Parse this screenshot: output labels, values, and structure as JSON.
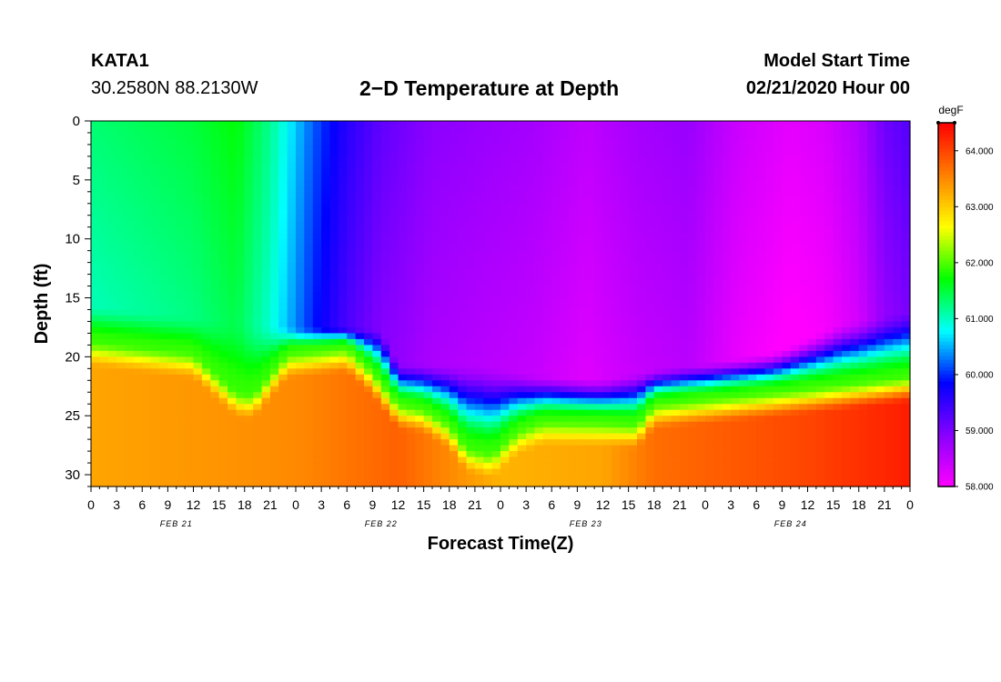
{
  "header": {
    "station": "KATA1",
    "coords": "30.2580N 88.2130W",
    "title": "2−D Temperature at Depth",
    "model_start_label": "Model Start Time",
    "model_start_value": "02/21/2020 Hour 00"
  },
  "chart_data": {
    "type": "heatmap",
    "title": "2−D Temperature at Depth",
    "xlabel": "Forecast Time(Z)",
    "ylabel": "Depth (ft)",
    "x_range_hours": [
      0,
      96
    ],
    "y_range_ft": [
      0,
      31
    ],
    "x_tick_labels": [
      "0",
      "3",
      "6",
      "9",
      "12",
      "15",
      "18",
      "21",
      "0",
      "3",
      "6",
      "9",
      "12",
      "15",
      "18",
      "21",
      "0",
      "3",
      "6",
      "9",
      "12",
      "15",
      "18",
      "21",
      "0",
      "3",
      "6",
      "9",
      "12",
      "15",
      "18",
      "21",
      "0"
    ],
    "y_ticks": [
      0,
      5,
      10,
      15,
      20,
      25,
      30
    ],
    "date_labels": [
      {
        "label": "FEB 21",
        "hour": 10
      },
      {
        "label": "FEB 22",
        "hour": 34
      },
      {
        "label": "FEB 23",
        "hour": 58
      },
      {
        "label": "FEB 24",
        "hour": 82
      }
    ],
    "colorbar": {
      "unit": "degF",
      "min": 58.0,
      "max": 64.5,
      "tick_values": [
        58,
        59,
        60,
        61,
        62,
        63,
        64
      ],
      "tick_labels": [
        "58.000",
        "59.000",
        "60.000",
        "61.000",
        "62.000",
        "63.000",
        "64.000"
      ],
      "colors": [
        "#ff00ff",
        "#8800ff",
        "#0000ff",
        "#00ffff",
        "#00ff00",
        "#ffff00",
        "#ff8000",
        "#ff0000"
      ]
    },
    "surface_temp_degF": [
      {
        "hour": 0,
        "value": 61.3
      },
      {
        "hour": 6,
        "value": 61.4
      },
      {
        "hour": 12,
        "value": 61.5
      },
      {
        "hour": 17,
        "value": 61.7
      },
      {
        "hour": 21,
        "value": 61.2
      },
      {
        "hour": 26,
        "value": 60.2
      },
      {
        "hour": 30,
        "value": 59.6
      },
      {
        "hour": 34,
        "value": 59.2
      },
      {
        "hour": 40,
        "value": 58.9
      },
      {
        "hour": 46,
        "value": 58.8
      },
      {
        "hour": 52,
        "value": 58.7
      },
      {
        "hour": 58,
        "value": 58.5
      },
      {
        "hour": 64,
        "value": 58.7
      },
      {
        "hour": 70,
        "value": 58.8
      },
      {
        "hour": 76,
        "value": 58.4
      },
      {
        "hour": 82,
        "value": 58.2
      },
      {
        "hour": 86,
        "value": 58.3
      },
      {
        "hour": 90,
        "value": 58.6
      },
      {
        "hour": 93,
        "value": 59.1
      },
      {
        "hour": 96,
        "value": 59.3
      }
    ],
    "bottom_temp_degF": [
      {
        "hour": 0,
        "value": 63.3
      },
      {
        "hour": 12,
        "value": 63.4
      },
      {
        "hour": 24,
        "value": 63.5
      },
      {
        "hour": 36,
        "value": 63.8
      },
      {
        "hour": 40,
        "value": 63.6
      },
      {
        "hour": 48,
        "value": 63.2
      },
      {
        "hour": 60,
        "value": 63.3
      },
      {
        "hour": 66,
        "value": 63.7
      },
      {
        "hour": 72,
        "value": 63.8
      },
      {
        "hour": 84,
        "value": 64.0
      },
      {
        "hour": 96,
        "value": 64.3
      }
    ],
    "thermocline_depth_ft": [
      {
        "hour": 0,
        "value": 18.5
      },
      {
        "hour": 12,
        "value": 19.5
      },
      {
        "hour": 17,
        "value": 22.8
      },
      {
        "hour": 19,
        "value": 23.0
      },
      {
        "hour": 23,
        "value": 19.5
      },
      {
        "hour": 30,
        "value": 19.0
      },
      {
        "hour": 33,
        "value": 21.0
      },
      {
        "hour": 36,
        "value": 23.8
      },
      {
        "hour": 39,
        "value": 24.2
      },
      {
        "hour": 42,
        "value": 25.5
      },
      {
        "hour": 44,
        "value": 27.5
      },
      {
        "hour": 47,
        "value": 28.0
      },
      {
        "hour": 50,
        "value": 26.0
      },
      {
        "hour": 53,
        "value": 25.2
      },
      {
        "hour": 60,
        "value": 25.3
      },
      {
        "hour": 64,
        "value": 25.5
      },
      {
        "hour": 66,
        "value": 23.8
      },
      {
        "hour": 70,
        "value": 23.5
      },
      {
        "hour": 80,
        "value": 22.8
      },
      {
        "hour": 90,
        "value": 22.0
      },
      {
        "hour": 96,
        "value": 21.5
      }
    ],
    "cold_layer_base_ft": [
      {
        "hour": 0,
        "value": 15.5
      },
      {
        "hour": 24,
        "value": 17.5
      },
      {
        "hour": 34,
        "value": 17.5
      },
      {
        "hour": 36,
        "value": 20.5
      },
      {
        "hour": 46,
        "value": 20.5
      },
      {
        "hour": 52,
        "value": 21.5
      },
      {
        "hour": 60,
        "value": 21.8
      },
      {
        "hour": 66,
        "value": 21.0
      },
      {
        "hour": 72,
        "value": 20.5
      },
      {
        "hour": 80,
        "value": 19.5
      },
      {
        "hour": 88,
        "value": 17.0
      },
      {
        "hour": 96,
        "value": 16.0
      }
    ]
  }
}
